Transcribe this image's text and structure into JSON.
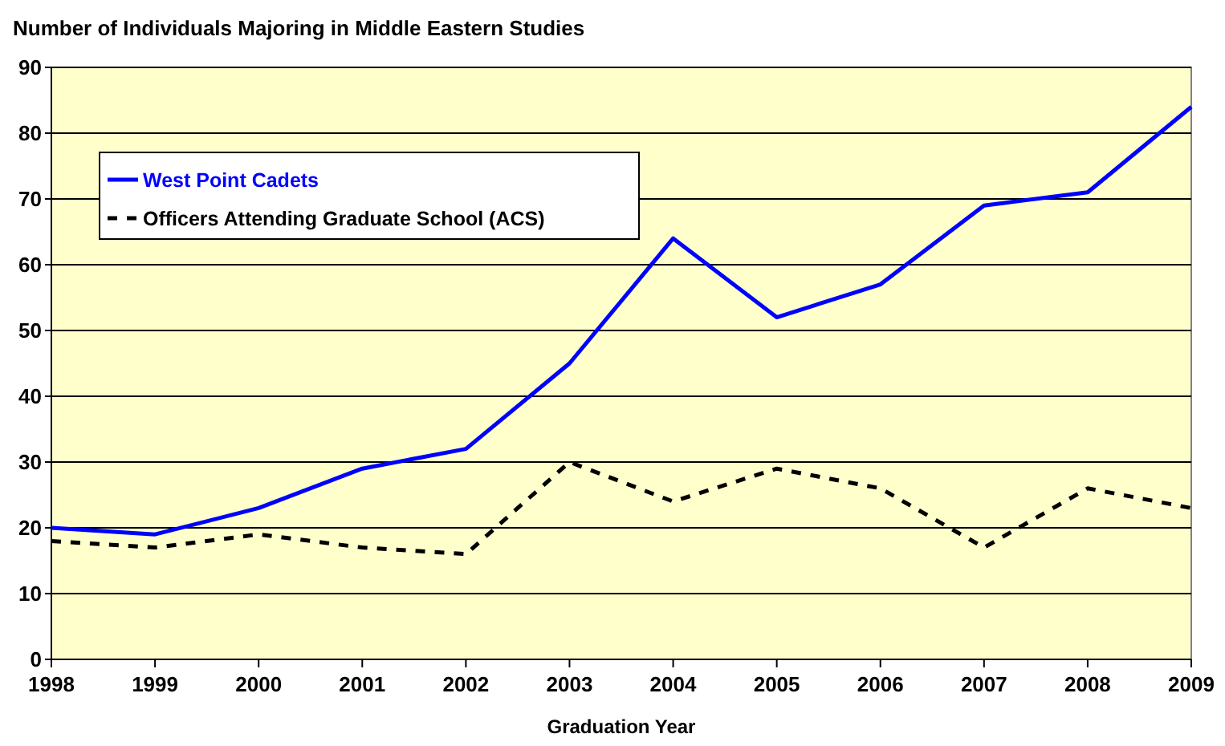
{
  "chart_data": {
    "type": "line",
    "title": "Number of Individuals Majoring in Middle Eastern Studies",
    "xlabel": "Graduation Year",
    "categories": [
      "1998",
      "1999",
      "2000",
      "2001",
      "2002",
      "2003",
      "2004",
      "2005",
      "2006",
      "2007",
      "2008",
      "2009"
    ],
    "series": [
      {
        "name": "West Point Cadets",
        "color": "#0000ff",
        "line_style": "solid",
        "values": [
          20,
          19,
          23,
          29,
          32,
          45,
          64,
          52,
          57,
          69,
          71,
          84
        ]
      },
      {
        "name": "Officers Attending Graduate School (ACS)",
        "color": "#000000",
        "line_style": "dashed",
        "values": [
          18,
          17,
          19,
          17,
          16,
          30,
          24,
          29,
          26,
          17,
          26,
          23
        ]
      }
    ],
    "ylim": [
      0,
      90
    ],
    "yticks": [
      0,
      10,
      20,
      30,
      40,
      50,
      60,
      70,
      80,
      90
    ],
    "grid": "y",
    "legend": "top left",
    "marker": "none"
  }
}
